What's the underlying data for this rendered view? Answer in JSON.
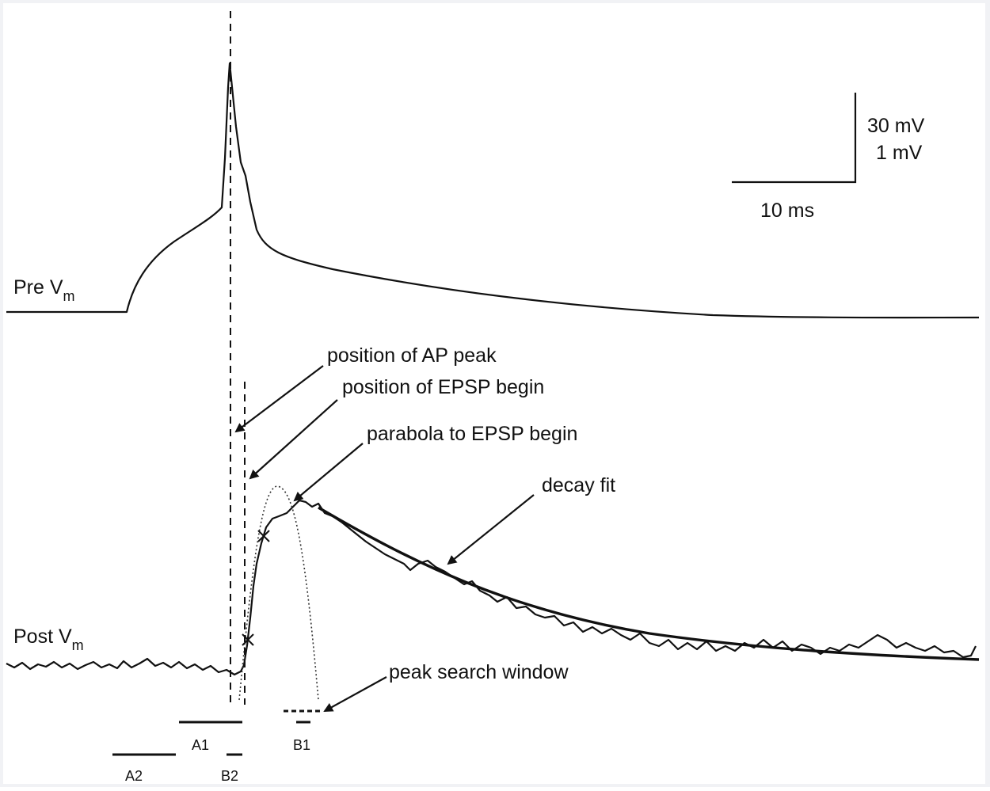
{
  "labels": {
    "pre": "Pre V",
    "pre_sub": "m",
    "post": "Post V",
    "post_sub": "m"
  },
  "scale_bar": {
    "v1": "30 mV",
    "v2": "1 mV",
    "t": "10 ms"
  },
  "annotations": {
    "ap_peak": "position of AP peak",
    "epsp_begin": "position of EPSP begin",
    "parabola": "parabola to EPSP begin",
    "decay": "decay fit",
    "peak_window": "peak search window"
  },
  "windows": {
    "a1": "A1",
    "a2": "A2",
    "b1": "B1",
    "b2": "B2"
  }
}
